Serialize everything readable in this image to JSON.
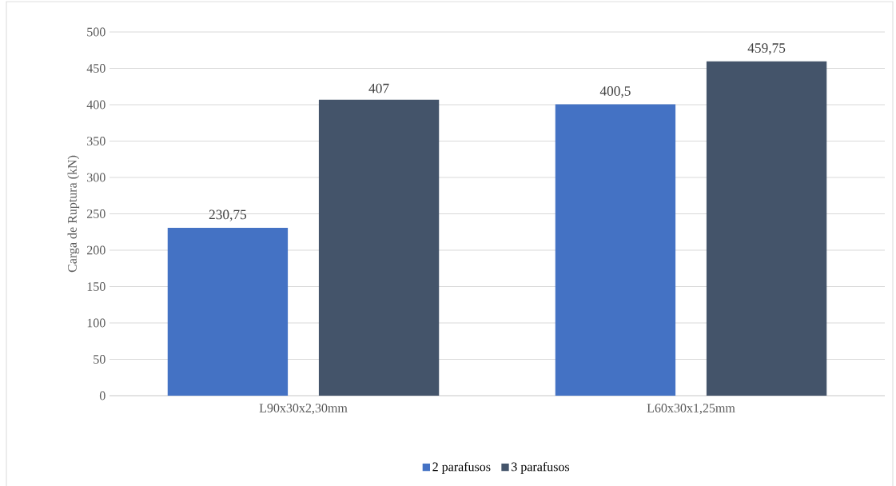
{
  "chart_data": {
    "type": "bar",
    "ylabel": "Carga de Ruptura (kN)",
    "categories": [
      "L90x30x2,30mm",
      "L60x30x1,25mm"
    ],
    "series": [
      {
        "name": "2 parafusos",
        "color": "#4472c4",
        "values": [
          230.75,
          400.5
        ],
        "value_labels": [
          "230,75",
          "400,5"
        ]
      },
      {
        "name": "3 parafusos",
        "color": "#44546a",
        "values": [
          407,
          459.75
        ],
        "value_labels": [
          "407",
          "459,75"
        ]
      }
    ],
    "ylim": [
      0,
      500
    ],
    "yticks": [
      0,
      50,
      100,
      150,
      200,
      250,
      300,
      350,
      400,
      450,
      500
    ],
    "grid": "y",
    "legend": "bottom"
  }
}
